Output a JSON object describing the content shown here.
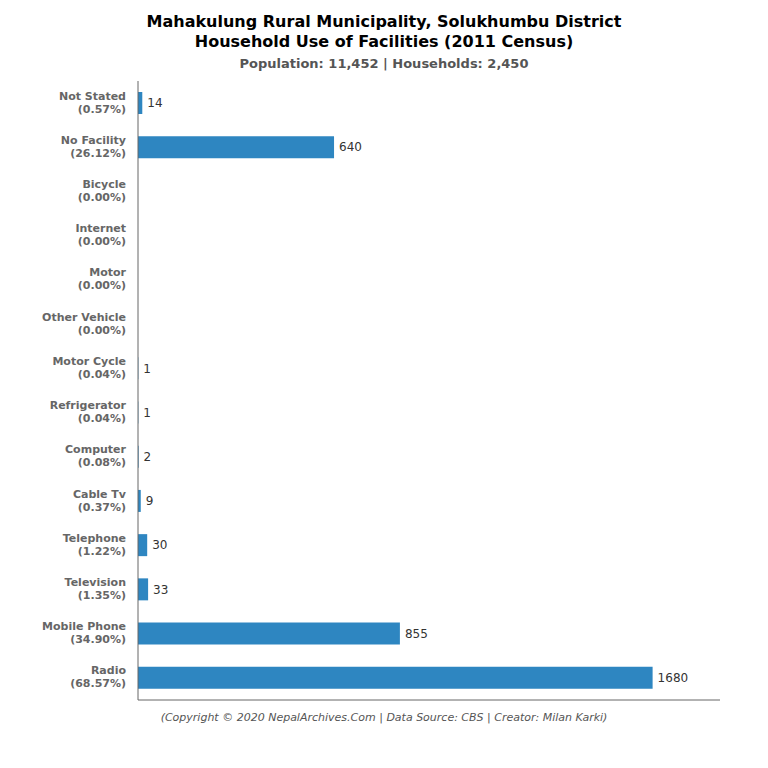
{
  "chart_data": {
    "type": "bar",
    "orientation": "horizontal",
    "title": "Mahakulung Rural Municipality, Solukhumbu District\nHousehold Use of Facilities (2011 Census)",
    "subtitle": "Population: 11,452 | Households: 2,450",
    "annotations": [
      "(Copyright © 2020 NepalArchives.Com | Data Source: CBS | Creator: Milan Karki)"
    ],
    "categories": [
      "Radio\n(68.57%)",
      "Mobile Phone\n(34.90%)",
      "Television\n(1.35%)",
      "Telephone\n(1.22%)",
      "Cable Tv\n(0.37%)",
      "Computer\n(0.08%)",
      "Refrigerator\n(0.04%)",
      "Motor Cycle\n(0.04%)",
      "Other Vehicle\n(0.00%)",
      "Motor\n(0.00%)",
      "Internet\n(0.00%)",
      "Bicycle\n(0.00%)",
      "No Facility\n(26.12%)",
      "Not Stated\n(0.57%)"
    ],
    "values": [
      1680,
      855,
      33,
      30,
      9,
      2,
      1,
      1,
      0,
      0,
      0,
      0,
      640,
      14
    ],
    "color": "#2E86C1",
    "xlim": [
      0,
      1900
    ],
    "grid": false,
    "data_labels": true,
    "tick_labels": "y"
  }
}
